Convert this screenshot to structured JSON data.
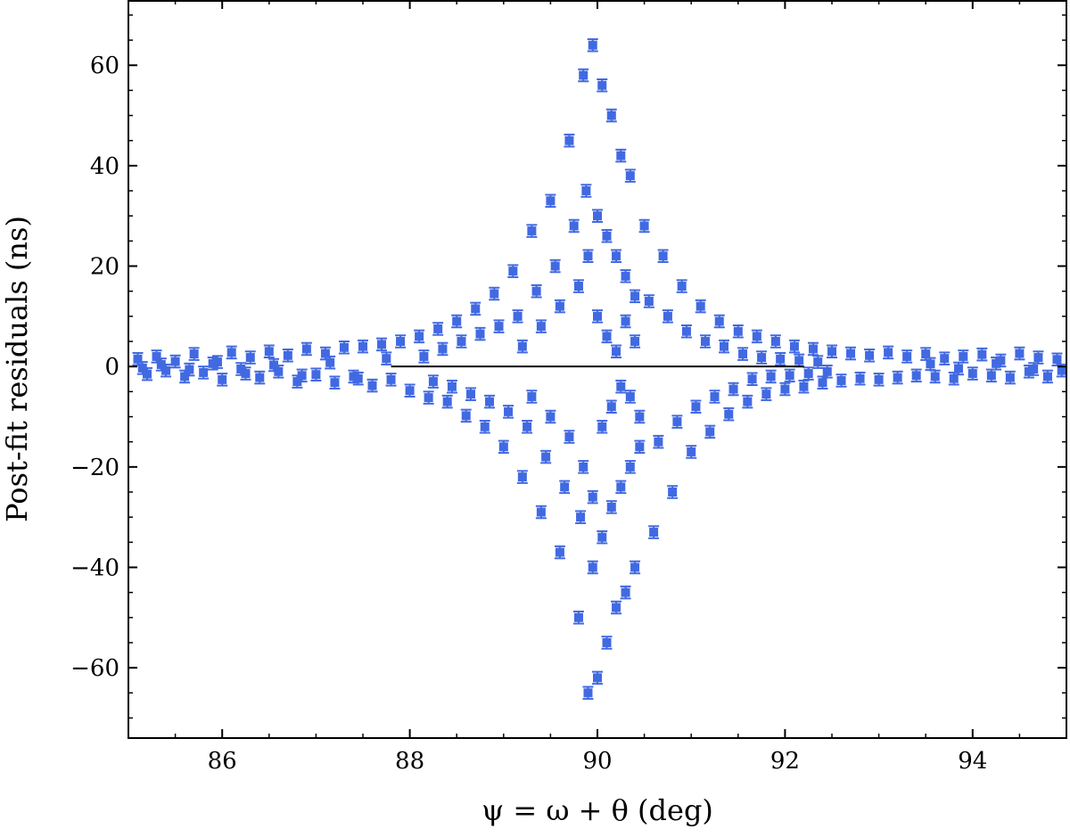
{
  "chart_data": {
    "type": "scatter",
    "title": "",
    "xlabel": "ψ = ω + θ (deg)",
    "ylabel": "Post-fit residuals (ns)",
    "xlim": [
      85,
      95
    ],
    "ylim": [
      -74,
      73
    ],
    "x_ticks": [
      86,
      88,
      90,
      92,
      94
    ],
    "x_tick_labels": [
      "86",
      "88",
      "90",
      "92",
      "94"
    ],
    "y_ticks": [
      60,
      40,
      20,
      0,
      -20,
      -40,
      -60
    ],
    "y_tick_labels": [
      "60",
      "40",
      "20",
      "0",
      "−20",
      "−40",
      "−60"
    ],
    "grid": false,
    "legend": "none",
    "colors": {
      "points": "#4169e1",
      "model_line": "#000000",
      "axes": "#000000"
    },
    "model_line": {
      "x": [
        87.8,
        92.2
      ],
      "y": [
        0,
        0
      ]
    },
    "errorbar_ns": 1.2,
    "series": [
      {
        "points": [
          [
            85.1,
            1.5
          ],
          [
            85.2,
            -1.5
          ],
          [
            85.3,
            2.0
          ],
          [
            85.4,
            -0.8
          ],
          [
            85.5,
            1.0
          ],
          [
            85.6,
            -2.0
          ],
          [
            85.7,
            2.5
          ],
          [
            85.8,
            -1.2
          ],
          [
            85.9,
            0.6
          ],
          [
            86.0,
            -2.6
          ],
          [
            86.1,
            2.8
          ],
          [
            86.2,
            -0.5
          ],
          [
            86.3,
            1.8
          ],
          [
            86.4,
            -2.2
          ],
          [
            86.5,
            3.0
          ],
          [
            86.6,
            -1.0
          ],
          [
            86.7,
            2.2
          ],
          [
            86.8,
            -3.0
          ],
          [
            86.9,
            3.5
          ],
          [
            87.0,
            -1.6
          ],
          [
            87.1,
            2.6
          ],
          [
            87.2,
            -3.2
          ],
          [
            87.3,
            3.8
          ],
          [
            87.4,
            -2.0
          ],
          [
            87.5,
            4.0
          ],
          [
            87.6,
            -3.8
          ],
          [
            87.7,
            4.4
          ],
          [
            87.8,
            -2.6
          ],
          [
            87.9,
            5.0
          ],
          [
            88.0,
            -4.8
          ],
          [
            85.15,
            -0.3
          ],
          [
            85.35,
            0.4
          ],
          [
            85.65,
            -0.6
          ],
          [
            85.95,
            0.9
          ],
          [
            86.25,
            -1.4
          ],
          [
            86.55,
            0.3
          ],
          [
            86.85,
            -1.8
          ],
          [
            87.15,
            0.8
          ],
          [
            87.45,
            -2.4
          ],
          [
            87.75,
            1.6
          ],
          [
            88.1,
            6.0
          ],
          [
            88.2,
            -6.2
          ],
          [
            88.3,
            7.5
          ],
          [
            88.4,
            -7.0
          ],
          [
            88.5,
            9.0
          ],
          [
            88.6,
            -9.8
          ],
          [
            88.7,
            11.5
          ],
          [
            88.8,
            -12.0
          ],
          [
            88.9,
            14.5
          ],
          [
            89.0,
            -16.0
          ],
          [
            88.15,
            2.0
          ],
          [
            88.25,
            -3.0
          ],
          [
            88.35,
            3.5
          ],
          [
            88.45,
            -4.0
          ],
          [
            88.55,
            5.0
          ],
          [
            88.65,
            -5.5
          ],
          [
            88.75,
            6.5
          ],
          [
            88.85,
            -7.0
          ],
          [
            88.95,
            8.0
          ],
          [
            89.05,
            -9.0
          ],
          [
            89.1,
            19.0
          ],
          [
            89.2,
            -22.0
          ],
          [
            89.3,
            27.0
          ],
          [
            89.4,
            -29.0
          ],
          [
            89.5,
            33.0
          ],
          [
            89.6,
            -37.0
          ],
          [
            89.7,
            45.0
          ],
          [
            89.8,
            -50.0
          ],
          [
            89.85,
            58.0
          ],
          [
            89.9,
            -65.0
          ],
          [
            89.15,
            10.0
          ],
          [
            89.25,
            -12.0
          ],
          [
            89.35,
            15.0
          ],
          [
            89.45,
            -18.0
          ],
          [
            89.55,
            20.0
          ],
          [
            89.65,
            -24.0
          ],
          [
            89.75,
            28.0
          ],
          [
            89.82,
            -30.0
          ],
          [
            89.88,
            35.0
          ],
          [
            89.95,
            -40.0
          ],
          [
            89.2,
            4.0
          ],
          [
            89.3,
            -6.0
          ],
          [
            89.4,
            8.0
          ],
          [
            89.5,
            -10.0
          ],
          [
            89.6,
            12.0
          ],
          [
            89.7,
            -14.0
          ],
          [
            89.8,
            16.0
          ],
          [
            89.85,
            -20.0
          ],
          [
            89.9,
            22.0
          ],
          [
            89.95,
            -26.0
          ],
          [
            89.95,
            64.0
          ],
          [
            90.0,
            -62.0
          ],
          [
            90.05,
            56.0
          ],
          [
            90.1,
            -55.0
          ],
          [
            90.15,
            50.0
          ],
          [
            90.2,
            -48.0
          ],
          [
            90.25,
            42.0
          ],
          [
            90.3,
            -45.0
          ],
          [
            90.35,
            38.0
          ],
          [
            90.4,
            -40.0
          ],
          [
            90.0,
            30.0
          ],
          [
            90.05,
            -34.0
          ],
          [
            90.1,
            26.0
          ],
          [
            90.15,
            -28.0
          ],
          [
            90.2,
            22.0
          ],
          [
            90.25,
            -24.0
          ],
          [
            90.3,
            18.0
          ],
          [
            90.35,
            -20.0
          ],
          [
            90.4,
            14.0
          ],
          [
            90.45,
            -16.0
          ],
          [
            90.0,
            10.0
          ],
          [
            90.05,
            -12.0
          ],
          [
            90.1,
            6.0
          ],
          [
            90.15,
            -8.0
          ],
          [
            90.2,
            3.0
          ],
          [
            90.25,
            -4.0
          ],
          [
            90.3,
            9.0
          ],
          [
            90.35,
            -6.0
          ],
          [
            90.4,
            5.0
          ],
          [
            90.45,
            -10.0
          ],
          [
            90.5,
            28.0
          ],
          [
            90.6,
            -33.0
          ],
          [
            90.7,
            22.0
          ],
          [
            90.8,
            -25.0
          ],
          [
            90.9,
            16.0
          ],
          [
            91.0,
            -17.0
          ],
          [
            91.1,
            12.0
          ],
          [
            91.2,
            -13.0
          ],
          [
            91.3,
            9.0
          ],
          [
            91.4,
            -9.5
          ],
          [
            90.55,
            13.0
          ],
          [
            90.65,
            -15.0
          ],
          [
            90.75,
            10.0
          ],
          [
            90.85,
            -11.0
          ],
          [
            90.95,
            7.0
          ],
          [
            91.05,
            -8.0
          ],
          [
            91.15,
            5.0
          ],
          [
            91.25,
            -6.0
          ],
          [
            91.35,
            4.0
          ],
          [
            91.45,
            -4.5
          ],
          [
            91.5,
            7.0
          ],
          [
            91.6,
            -7.0
          ],
          [
            91.7,
            6.0
          ],
          [
            91.8,
            -5.5
          ],
          [
            91.9,
            5.0
          ],
          [
            92.0,
            -4.5
          ],
          [
            92.1,
            4.0
          ],
          [
            92.2,
            -4.0
          ],
          [
            92.3,
            3.5
          ],
          [
            92.4,
            -3.2
          ],
          [
            91.55,
            2.5
          ],
          [
            91.65,
            -2.5
          ],
          [
            91.75,
            1.8
          ],
          [
            91.85,
            -2.0
          ],
          [
            91.95,
            1.5
          ],
          [
            92.05,
            -1.8
          ],
          [
            92.15,
            1.2
          ],
          [
            92.25,
            -1.4
          ],
          [
            92.35,
            0.9
          ],
          [
            92.45,
            -1.0
          ],
          [
            92.5,
            3.0
          ],
          [
            92.6,
            -2.8
          ],
          [
            92.7,
            2.6
          ],
          [
            92.8,
            -2.4
          ],
          [
            92.9,
            2.2
          ],
          [
            93.0,
            -2.6
          ],
          [
            93.1,
            2.8
          ],
          [
            93.2,
            -2.2
          ],
          [
            93.3,
            2.0
          ],
          [
            93.4,
            -1.8
          ],
          [
            93.5,
            2.5
          ],
          [
            93.6,
            -2.0
          ],
          [
            93.7,
            1.6
          ],
          [
            93.8,
            -2.4
          ],
          [
            93.9,
            2.0
          ],
          [
            94.0,
            -1.4
          ],
          [
            94.1,
            2.4
          ],
          [
            94.2,
            -1.8
          ],
          [
            94.3,
            1.2
          ],
          [
            94.4,
            -2.2
          ],
          [
            94.5,
            2.6
          ],
          [
            94.6,
            -1.0
          ],
          [
            94.7,
            1.8
          ],
          [
            94.8,
            -2.0
          ],
          [
            94.9,
            1.4
          ],
          [
            94.95,
            -0.8
          ],
          [
            93.55,
            0.5
          ],
          [
            93.85,
            -0.4
          ],
          [
            94.25,
            0.6
          ],
          [
            94.65,
            -0.5
          ]
        ]
      }
    ]
  }
}
